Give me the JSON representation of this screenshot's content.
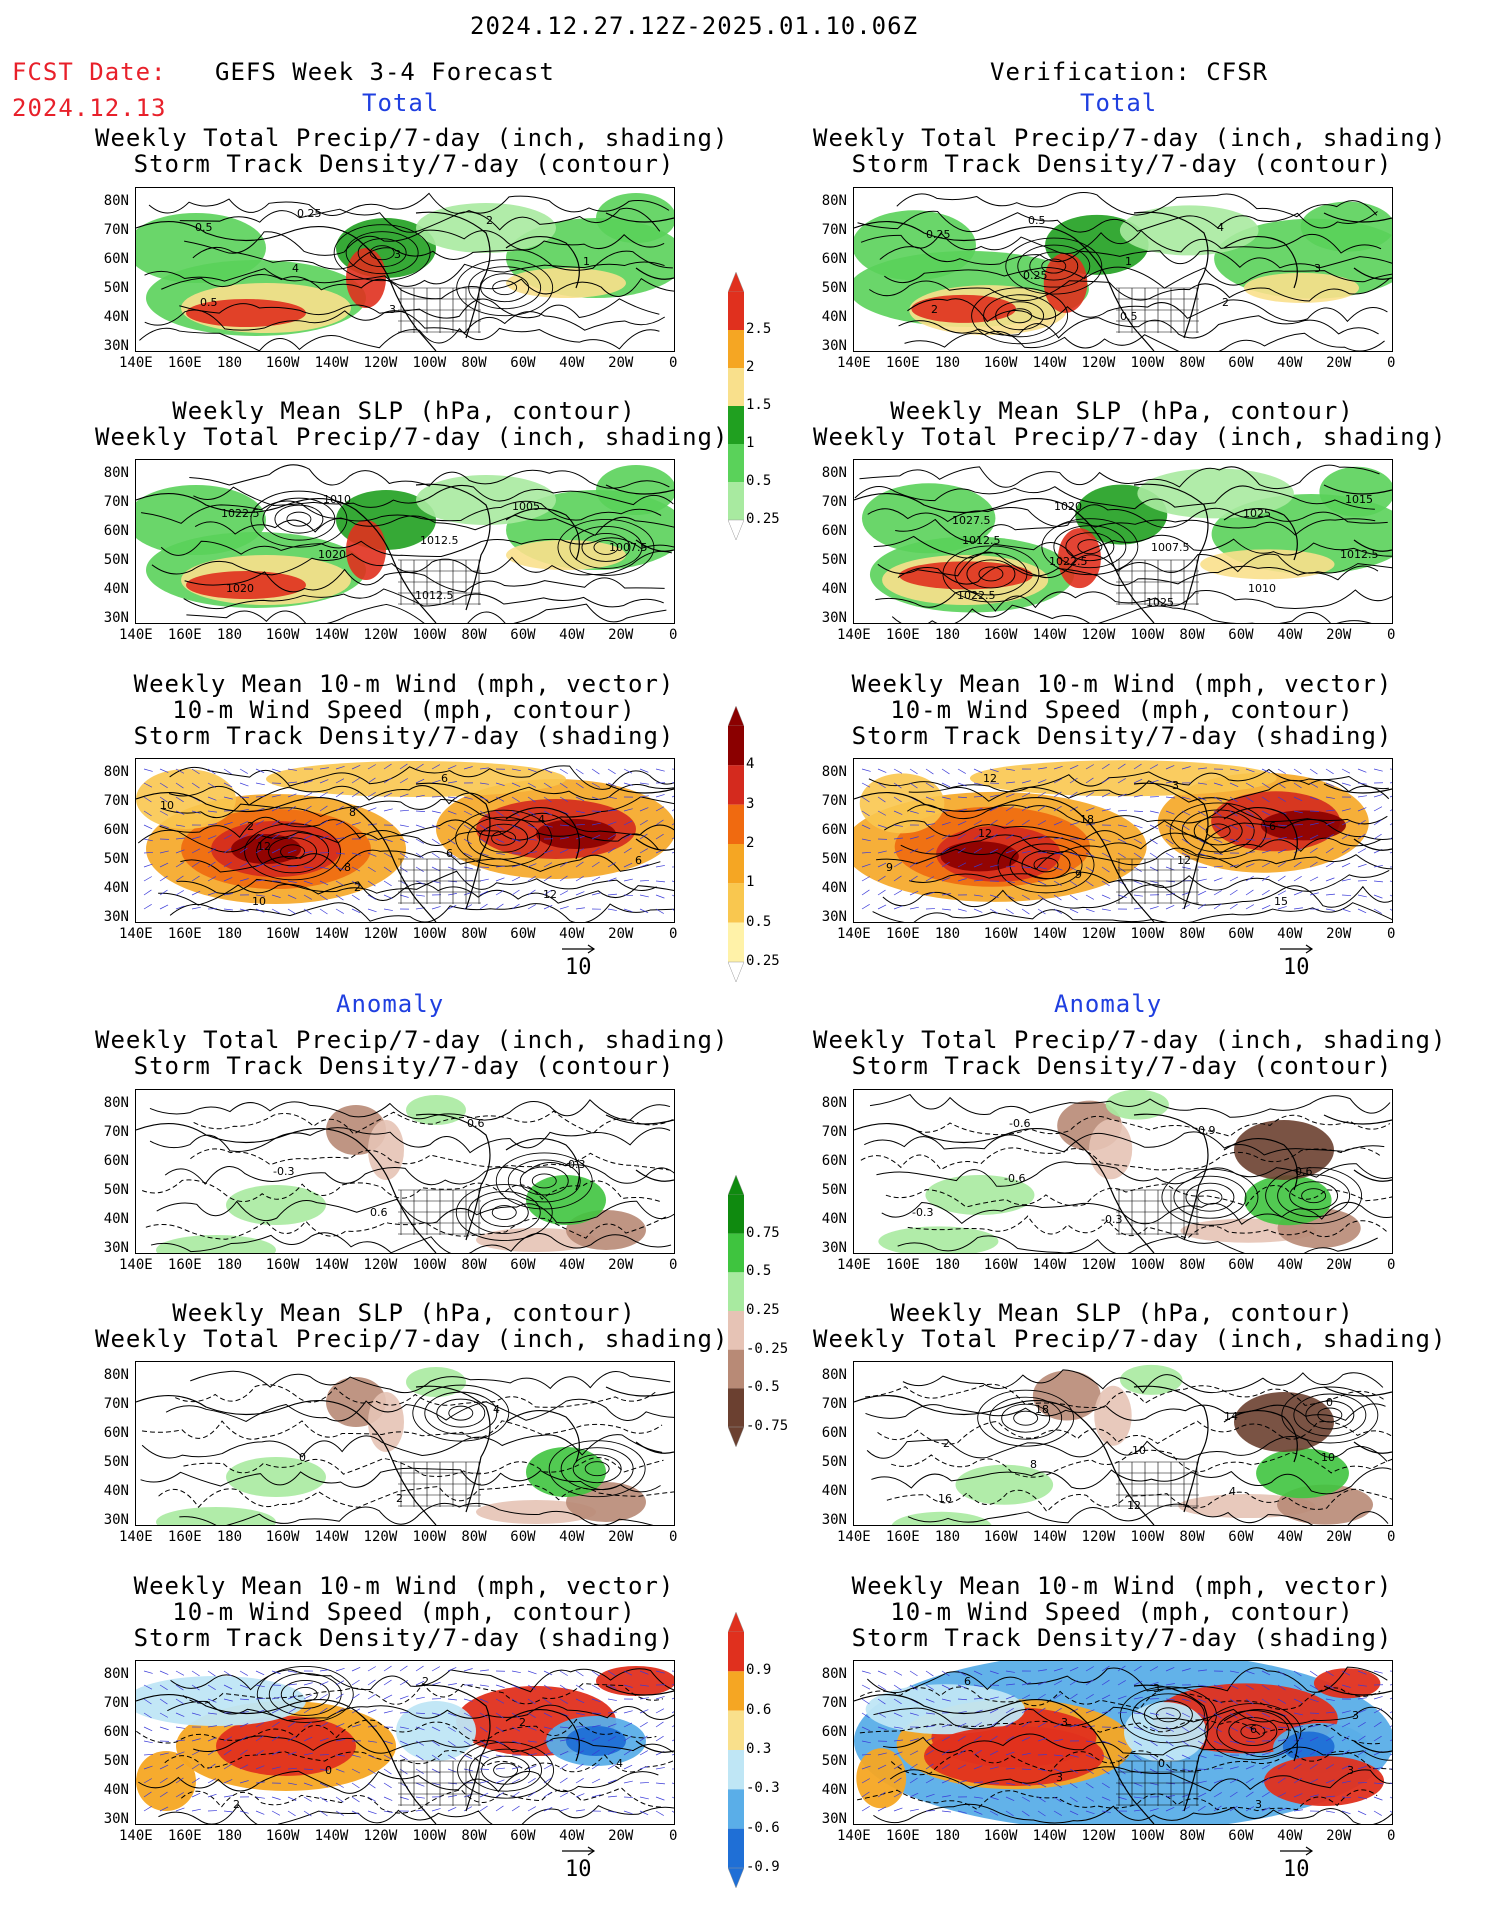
{
  "header": {
    "date_range": "2024.12.27.12Z-2025.01.10.06Z",
    "fcst_label": "FCST Date:",
    "fcst_date": "2024.12.13",
    "left_title": "GEFS Week 3-4 Forecast",
    "right_title": "Verification: CFSR",
    "total_label": "Total",
    "anomaly_label": "Anomaly"
  },
  "axes": {
    "lat_labels": [
      "80N",
      "70N",
      "60N",
      "50N",
      "40N",
      "30N"
    ],
    "lon_labels": [
      "140E",
      "160E",
      "180",
      "160W",
      "140W",
      "120W",
      "100W",
      "80W",
      "60W",
      "40W",
      "20W",
      "0"
    ]
  },
  "panels": {
    "precip_storm": {
      "line1": "Weekly Total Precip/7-day (inch, shading)",
      "line2": "Storm Track Density/7-day (contour)"
    },
    "slp_precip": {
      "line1": "Weekly Mean SLP (hPa, contour)",
      "line2": "Weekly Total Precip/7-day (inch, shading)"
    },
    "wind_storm": {
      "line1": "Weekly Mean 10-m Wind (mph, vector)",
      "line2": "10-m Wind Speed (mph, contour)",
      "line3": "Storm Track Density/7-day (shading)"
    }
  },
  "colorbars": {
    "precip_total": {
      "labels": [
        "2.5",
        "2",
        "1.5",
        "1",
        "0.5",
        "0.25"
      ],
      "colors": [
        "#e0301e",
        "#f5a623",
        "#f9e08c",
        "#20a020",
        "#5ad25a",
        "#a8eaa0"
      ]
    },
    "storm_total": {
      "labels": [
        "4",
        "3",
        "2",
        "1",
        "0.5",
        "0.25"
      ],
      "colors": [
        "#8b0000",
        "#d42a1e",
        "#f06a10",
        "#f5a623",
        "#f9c74f",
        "#fff2a8"
      ]
    },
    "precip_anom": {
      "labels": [
        "0.75",
        "0.5",
        "0.25",
        "-0.25",
        "-0.5",
        "-0.75"
      ],
      "colors": [
        "#0f8a0f",
        "#3fc43f",
        "#a8eaa0",
        "#e6c3b5",
        "#b88a76",
        "#6b4030"
      ]
    },
    "storm_anom": {
      "labels": [
        "0.9",
        "0.6",
        "0.3",
        "-0.3",
        "-0.6",
        "-0.9"
      ],
      "colors": [
        "#e0301e",
        "#f5a623",
        "#f9e08c",
        "#bfe6f5",
        "#5aaee8",
        "#1f6fd6"
      ]
    }
  },
  "vector_ref": "10",
  "contour_labels": {
    "l1": [
      "0.5",
      "4",
      "3",
      "2",
      "1",
      "0.5",
      "0.25",
      "3"
    ],
    "r1": [
      "0.25",
      "0.25",
      "0.5",
      "4",
      "3",
      "2",
      "0.5",
      "1",
      "2"
    ],
    "l2": [
      "1022.5",
      "1020",
      "1012.5",
      "1005",
      "1007.5",
      "1020",
      "1010",
      "1012.5"
    ],
    "r2": [
      "1027.5",
      "1022.5",
      "1025",
      "1025",
      "1012.5",
      "1022.5",
      "1020",
      "1007.5",
      "1010",
      "1015",
      "1012.5"
    ],
    "l3": [
      "2",
      "8",
      "6",
      "4",
      "6",
      "10",
      "8",
      "6",
      "12",
      "10",
      "12",
      "2"
    ],
    "r3": [
      "12",
      "9",
      "3",
      "6",
      "9",
      "12",
      "18",
      "12",
      "15"
    ],
    "l4": [
      "-0.3",
      "0.6",
      "0.6",
      "-0.3"
    ],
    "r4": [
      "-0.6",
      "-0.3",
      "0.9",
      "0.6",
      "-0.3",
      "-0.6"
    ],
    "l5": [
      "0",
      "2",
      "4"
    ],
    "r5": [
      "8",
      "12",
      "14",
      "10",
      "16",
      "18",
      "10",
      "4",
      "0",
      "2"
    ],
    "l6": [
      "0",
      "2",
      "2",
      "4",
      "2"
    ],
    "r6": [
      "3",
      "3",
      "6",
      "3",
      "6",
      "3",
      "0",
      "3",
      "3"
    ]
  }
}
